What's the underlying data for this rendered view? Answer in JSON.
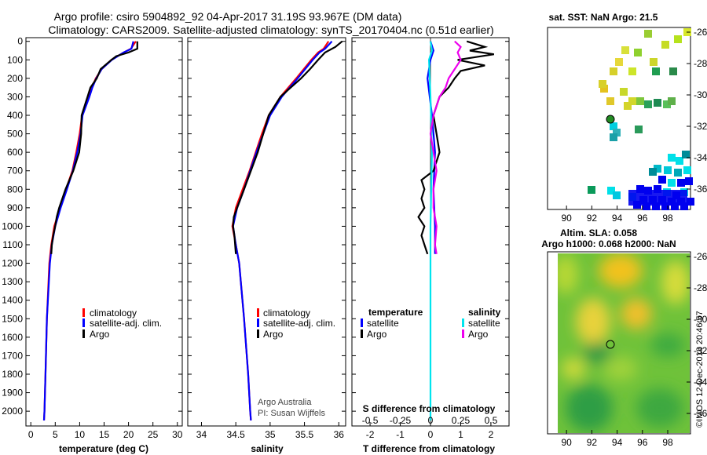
{
  "header": {
    "line1": "Argo profile: csiro 5904892_92 04-Apr-2017 31.19S 93.967E (DM data)",
    "line2": "Climatology: CARS2009. Satellite-adjusted climatology: synTS_20170404.nc (0.51d earlier)"
  },
  "colors": {
    "climatology": "#ff0000",
    "satellite": "#0000ff",
    "argo": "#000000",
    "sat_s": "#00e5ee",
    "argo_s": "#ee00ee"
  },
  "chart_data": [
    {
      "type": "line",
      "id": "temperature",
      "xlabel": "temperature (deg C)",
      "ylabel": "depth",
      "xlim": [
        -1,
        31
      ],
      "ylim": [
        2080,
        -20
      ],
      "xticks": [
        "0",
        "5",
        "10",
        "15",
        "20",
        "25",
        "30"
      ],
      "xtickvals": [
        0,
        5,
        10,
        15,
        20,
        25,
        30
      ],
      "yticks": [
        "0",
        "100",
        "200",
        "300",
        "400",
        "500",
        "600",
        "700",
        "800",
        "900",
        "1000",
        "1100",
        "1200",
        "1300",
        "1400",
        "1500",
        "1600",
        "1700",
        "1800",
        "1900",
        "2000"
      ],
      "legend": [
        "climatology",
        "satellite-adj. clim.",
        "Argo"
      ],
      "series": [
        {
          "name": "climatology",
          "color": "#ff0000",
          "depth": [
            0,
            40,
            60,
            100,
            150,
            200,
            250,
            300,
            400,
            500,
            600,
            700,
            800,
            900,
            1000,
            1100,
            1200,
            1500,
            1800,
            2000,
            2050
          ],
          "values": [
            21.5,
            20.5,
            19,
            16.5,
            14.5,
            13.3,
            12.5,
            11.9,
            10.5,
            10,
            9.3,
            8.5,
            7.2,
            6,
            4.8,
            4.2,
            3.8,
            3.3,
            3,
            2.8,
            2.7
          ]
        },
        {
          "name": "satellite-adj. clim.",
          "color": "#0000ff",
          "depth": [
            0,
            40,
            60,
            100,
            150,
            200,
            250,
            300,
            400,
            500,
            600,
            700,
            800,
            900,
            1000,
            1100,
            1200,
            1500,
            1800,
            2000,
            2050
          ],
          "values": [
            21,
            20.6,
            19,
            16.6,
            14.5,
            13.4,
            12.6,
            12,
            10.6,
            10.2,
            9.5,
            8.6,
            7.4,
            6.1,
            5,
            4.3,
            3.9,
            3.3,
            3,
            2.8,
            2.7
          ]
        },
        {
          "name": "Argo",
          "color": "#000000",
          "depth": [
            0,
            40,
            60,
            80,
            100,
            150,
            200,
            250,
            300,
            400,
            500,
            600,
            700,
            800,
            900,
            950,
            1000,
            1050,
            1100,
            1150
          ],
          "values": [
            21.8,
            21.8,
            20,
            17.5,
            16.5,
            14.3,
            13.5,
            12.2,
            11.6,
            10.4,
            10.3,
            9.9,
            8.7,
            7.1,
            5.8,
            5.3,
            5,
            4.6,
            4.3,
            4.2
          ]
        }
      ]
    },
    {
      "type": "line",
      "id": "salinity",
      "xlabel": "salinity",
      "ylabel": "depth",
      "xlim": [
        33.8,
        36.1
      ],
      "ylim": [
        2080,
        -20
      ],
      "xticks": [
        "34",
        "34.5",
        "35",
        "35.5",
        "36"
      ],
      "xtickvals": [
        34,
        34.5,
        35,
        35.5,
        36
      ],
      "legend": [
        "climatology",
        "satellite-adj. clim.",
        "Argo"
      ],
      "annotation": [
        "Argo Australia",
        "PI: Susan Wijffels"
      ],
      "series": [
        {
          "name": "climatology",
          "color": "#ff0000",
          "depth": [
            0,
            40,
            60,
            100,
            200,
            300,
            400,
            500,
            600,
            700,
            800,
            900,
            1000,
            1100,
            1200,
            1500,
            1800,
            2000,
            2050
          ],
          "values": [
            35.85,
            35.78,
            35.7,
            35.6,
            35.38,
            35.15,
            34.98,
            34.88,
            34.79,
            34.7,
            34.6,
            34.5,
            34.45,
            34.5,
            34.55,
            34.62,
            34.68,
            34.71,
            34.72
          ]
        },
        {
          "name": "satellite-adj. clim.",
          "color": "#0000ff",
          "depth": [
            0,
            40,
            60,
            100,
            200,
            300,
            400,
            500,
            600,
            700,
            800,
            900,
            1000,
            1100,
            1200,
            1500,
            1800,
            2000,
            2050
          ],
          "values": [
            35.9,
            35.8,
            35.72,
            35.62,
            35.4,
            35.17,
            35,
            34.9,
            34.8,
            34.71,
            34.62,
            34.52,
            34.46,
            34.5,
            34.55,
            34.62,
            34.68,
            34.71,
            34.72
          ]
        },
        {
          "name": "Argo",
          "color": "#000000",
          "depth": [
            0,
            30,
            60,
            100,
            150,
            200,
            250,
            300,
            400,
            500,
            600,
            700,
            800,
            900,
            950,
            1000,
            1050,
            1100,
            1150
          ],
          "values": [
            36.05,
            35.95,
            35.8,
            35.7,
            35.58,
            35.45,
            35.3,
            35.15,
            34.98,
            34.9,
            34.82,
            34.72,
            34.62,
            34.52,
            34.47,
            34.46,
            34.48,
            34.49,
            34.5
          ]
        }
      ]
    },
    {
      "type": "line",
      "id": "difference",
      "xlabel": "T difference from climatology",
      "xlabel_top": "S difference from climatology",
      "xlim": [
        -2.6,
        2.6
      ],
      "ylim": [
        2080,
        -20
      ],
      "xticks": [
        "-2",
        "-1",
        "0",
        "1",
        "2"
      ],
      "xtickvals": [
        -2,
        -1,
        0,
        1,
        2
      ],
      "xticks_top": [
        "-0.5",
        "-0.25",
        "0",
        "0.25",
        "0.5"
      ],
      "xtickvals_top": [
        -2,
        -1,
        0,
        1,
        2
      ],
      "legend_t_title": "temperature",
      "legend_s_title": "salinity",
      "legend": [
        "satellite",
        "Argo",
        "satellite",
        "Argo"
      ],
      "series": [
        {
          "name": "T satellite",
          "color": "#0000ff",
          "depth": [
            0,
            50,
            100,
            200,
            400,
            600,
            800,
            1000,
            1150
          ],
          "values": [
            0,
            0.1,
            0,
            -0.1,
            0.05,
            0.15,
            0.1,
            0.15,
            0.15
          ]
        },
        {
          "name": "T Argo",
          "color": "#000000",
          "depth": [
            0,
            30,
            50,
            70,
            100,
            130,
            160,
            200,
            250,
            300,
            400,
            500,
            600,
            700,
            750,
            800,
            850,
            900,
            950,
            1000,
            1050,
            1100,
            1150
          ],
          "values": [
            1.2,
            1.8,
            1.3,
            2.1,
            0.9,
            1.8,
            1.0,
            0.8,
            0.6,
            0.3,
            0.1,
            0.2,
            0.3,
            0.1,
            -0.3,
            -0.2,
            -0.3,
            -0.2,
            -0.4,
            -0.2,
            -0.3,
            -0.2,
            -0.1
          ]
        },
        {
          "name": "S satellite",
          "color": "#00e5ee",
          "depth": [
            0,
            50,
            100,
            300,
            600,
            1000,
            1500,
            2050
          ],
          "values": [
            0,
            0.05,
            -0.05,
            0,
            0.05,
            0,
            0,
            0
          ]
        },
        {
          "name": "S Argo",
          "color": "#ee00ee",
          "depth": [
            0,
            30,
            60,
            100,
            150,
            200,
            250,
            300,
            400,
            500,
            600,
            700,
            800,
            900,
            1000,
            1100,
            1150
          ],
          "values": [
            0.8,
            1.0,
            0.9,
            1.0,
            0.8,
            0.6,
            0.5,
            0.3,
            0.1,
            0,
            0.1,
            0.2,
            0.1,
            0.1,
            0.2,
            0.15,
            0.2
          ]
        }
      ]
    },
    {
      "type": "heatmap",
      "id": "sst-map",
      "title": "sat. SST: NaN Argo: 21.5",
      "yticks": [
        "-26",
        "-28",
        "-30",
        "-32",
        "-34",
        "-36"
      ],
      "ytickvals": [
        -26,
        -28,
        -30,
        -32,
        -34,
        -36
      ],
      "xticks": [
        "90",
        "92",
        "94",
        "96",
        "98"
      ],
      "xtickvals": [
        90,
        92,
        94,
        96,
        98
      ],
      "xlim": [
        88.5,
        99.8
      ],
      "ylim": [
        -37.3,
        -25.7
      ],
      "argo_position": [
        93.97,
        -31.19
      ]
    },
    {
      "type": "heatmap",
      "id": "sla-map",
      "title1": "Altim. SLA: 0.058",
      "title2": "Argo h1000: 0.068 h2000: NaN",
      "yticks": [
        "-26",
        "-28",
        "-30",
        "-32",
        "-34",
        "-36"
      ],
      "ytickvals": [
        -26,
        -28,
        -30,
        -32,
        -34,
        -36
      ],
      "xticks": [
        "90",
        "92",
        "94",
        "96",
        "98"
      ],
      "xtickvals": [
        90,
        92,
        94,
        96,
        98
      ],
      "xlim": [
        88.5,
        99.8
      ],
      "ylim": [
        -37.3,
        -25.7
      ],
      "argo_position": [
        93.97,
        -31.19
      ]
    }
  ],
  "credit": "©IMOS 12-Dec-2018 20:46:57"
}
